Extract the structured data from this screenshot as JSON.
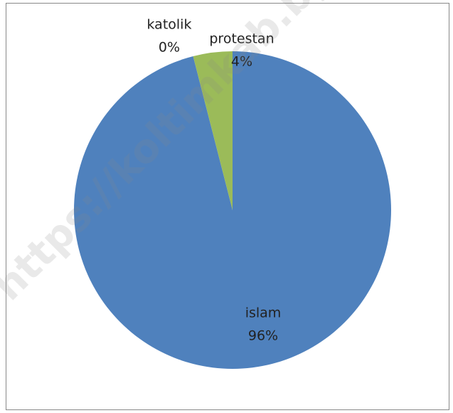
{
  "chart_data": {
    "type": "pie",
    "categories": [
      "islam",
      "katolik",
      "protestan"
    ],
    "values": [
      96,
      0,
      4
    ],
    "value_labels": [
      "96%",
      "0%",
      "4%"
    ],
    "colors": [
      "#4f81bd",
      "#c0504d",
      "#9bbb59"
    ],
    "watermark": "https://koltimkab.bp"
  }
}
